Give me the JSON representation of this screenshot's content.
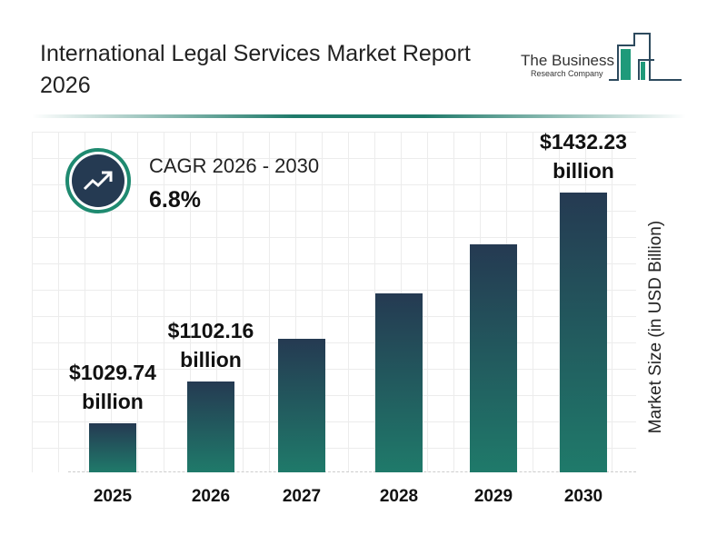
{
  "header": {
    "title": "International Legal Services Market Report 2026",
    "logo_text": "The Business Research Company"
  },
  "cagr": {
    "label": "CAGR 2026 - 2030",
    "value": "6.8%",
    "icon": "trending-up-icon"
  },
  "colors": {
    "bar_top": "#253a52",
    "bar_bottom": "#1f7a6a",
    "accent": "#1f8a70"
  },
  "chart_data": {
    "type": "bar",
    "categories": [
      "2025",
      "2026",
      "2027",
      "2028",
      "2029",
      "2030"
    ],
    "values": [
      1029.74,
      1102.16,
      1177.1,
      1257.1,
      1342.6,
      1432.23
    ],
    "data_labels": [
      {
        "index": 0,
        "line1": "$1029.74",
        "line2": "billion"
      },
      {
        "index": 1,
        "line1": "$1102.16",
        "line2": "billion"
      },
      {
        "index": 5,
        "line1": "$1432.23",
        "line2": "billion"
      }
    ],
    "ylabel": "Market Size (in USD Billion)",
    "grid": true
  }
}
